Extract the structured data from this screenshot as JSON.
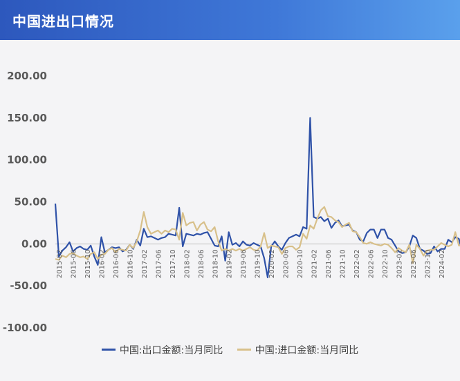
{
  "header": {
    "title": "中国进出口情况"
  },
  "chart_data": {
    "type": "line",
    "ylim": [
      -100,
      200
    ],
    "yticks": [
      "200.00",
      "150.00",
      "100.00",
      "50.00",
      "0.00",
      "-50.00",
      "-100.00"
    ],
    "xtick_labels": [
      "2015-02",
      "2015-06",
      "2015-10",
      "2016-02",
      "2016-06",
      "2016-10",
      "2017-02",
      "2017-06",
      "2017-10",
      "2018-02",
      "2018-06",
      "2018-10",
      "2019-02",
      "2019-06",
      "2019-10",
      "2020-02",
      "2020-06",
      "2020-10",
      "2021-02",
      "2021-06",
      "2021-10",
      "2022-02",
      "2022-06",
      "2022-10",
      "2023-02",
      "2023-06",
      "2023-10",
      "2024-02"
    ],
    "x_start": "2015-01",
    "x_end": "2024-04",
    "series": [
      {
        "name": "中国:出口金额:当月同比",
        "color": "#2f52a8",
        "values": [
          48,
          -15,
          -8,
          -4,
          2,
          -9,
          -5,
          -3,
          -6,
          -7,
          -2,
          -15,
          -25,
          8,
          -10,
          -7,
          -4,
          -5,
          -4,
          -9,
          -7,
          -1,
          -6,
          5,
          -2,
          18,
          8,
          9,
          7,
          5,
          7,
          8,
          12,
          11,
          10,
          43,
          -3,
          12,
          11,
          10,
          12,
          11,
          13,
          14,
          6,
          -2,
          -3,
          9,
          -20,
          14,
          -1,
          1,
          -3,
          3,
          -1,
          -2,
          1,
          -1,
          -3,
          -17,
          -40,
          -3,
          3,
          -3,
          -7,
          1,
          7,
          9,
          11,
          9,
          20,
          18,
          150,
          32,
          30,
          32,
          27,
          30,
          19,
          25,
          28,
          21,
          22,
          23,
          16,
          14,
          5,
          3,
          13,
          17,
          17,
          7,
          17,
          17,
          7,
          5,
          -2,
          -9,
          -11,
          -10,
          -3,
          10,
          7,
          -6,
          -8,
          -12,
          -11,
          -3,
          -9,
          -6,
          -6,
          5,
          2,
          8,
          6,
          -9
        ]
      },
      {
        "name": "中国:进口金额:当月同比",
        "color": "#d8c08a",
        "values": [
          -18,
          -19,
          -14,
          -16,
          -12,
          -11,
          -14,
          -16,
          -15,
          -18,
          -12,
          -10,
          -18,
          -13,
          -12,
          -7,
          -5,
          -10,
          -6,
          -7,
          -8,
          -1,
          -5,
          3,
          16,
          38,
          20,
          12,
          14,
          16,
          12,
          16,
          14,
          18,
          17,
          5,
          37,
          22,
          25,
          26,
          16,
          23,
          26,
          17,
          15,
          20,
          3,
          -8,
          -6,
          -8,
          -6,
          -8,
          -6,
          -8,
          -6,
          -4,
          -7,
          -8,
          -3,
          13,
          -5,
          -2,
          -3,
          -4,
          -12,
          -5,
          -3,
          -3,
          -7,
          -4,
          12,
          6,
          22,
          18,
          30,
          40,
          44,
          33,
          32,
          28,
          26,
          20,
          23,
          25,
          15,
          14,
          8,
          1,
          0,
          2,
          0,
          -1,
          -2,
          0,
          -1,
          -5,
          -10,
          -5,
          -8,
          -10,
          -1,
          -23,
          -1,
          -6,
          -14,
          -8,
          -7,
          -7,
          -3,
          1,
          -1,
          -3,
          -1,
          14,
          -2,
          -2
        ]
      }
    ],
    "legend_position": "bottom",
    "grid": false
  }
}
